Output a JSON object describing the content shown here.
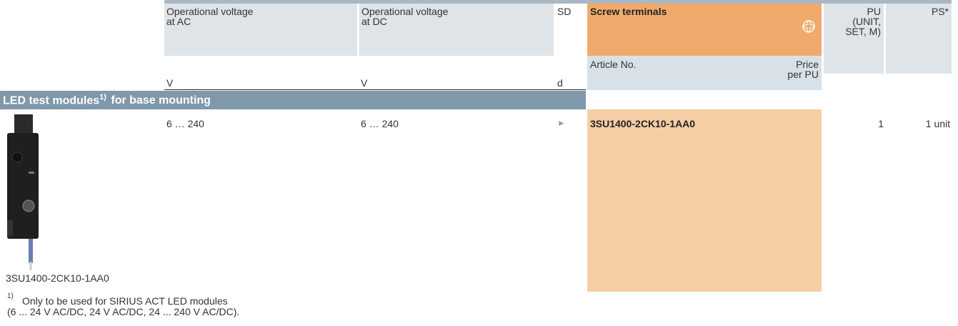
{
  "header": {
    "ac": {
      "label": [
        "Operational voltage",
        "at AC"
      ],
      "unit": "V"
    },
    "dc": {
      "label": [
        "Operational voltage",
        "at DC"
      ],
      "unit": "V"
    },
    "sd": {
      "label": "SD",
      "unit": "d"
    },
    "screw": {
      "label": "Screw terminals",
      "article": "Article No.",
      "price": [
        "Price",
        "per PU"
      ]
    },
    "pu": [
      "PU",
      "(UNIT,",
      "SET, M)"
    ],
    "ps": "PS*"
  },
  "section": {
    "title": "LED test modules",
    "footnote_ref": "1)",
    "title_rest": "for base mounting"
  },
  "rows": [
    {
      "ac": "6 … 240",
      "dc": "6 … 240",
      "sd": "►",
      "article": "3SU1400-2CK10-1AA0",
      "pu": "1",
      "ps": "1 unit"
    }
  ],
  "image_caption": "3SU1400-2CK10-1AA0",
  "footnote": {
    "ref": "1)",
    "lines": [
      "Only to be used for SIRIUS ACT LED modules",
      "(6 ... 24 V AC/DC, 24 V AC/DC, 24 ... 240 V AC/DC)."
    ]
  }
}
